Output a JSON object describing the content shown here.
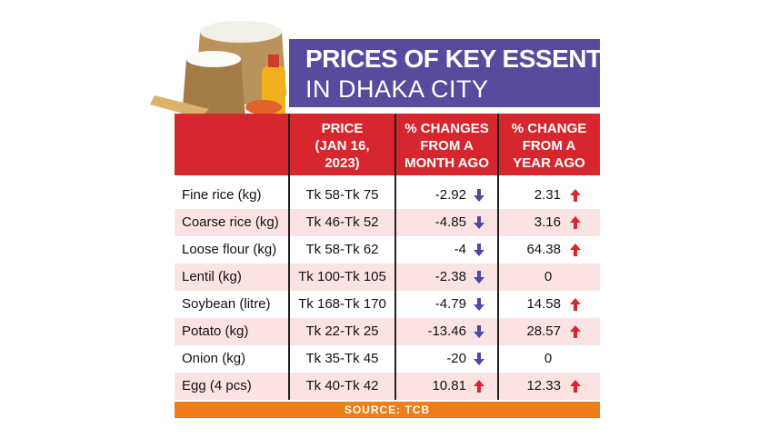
{
  "title": {
    "line1": "PRICES OF KEY ESSENTIALS",
    "line2": "IN DHAKA CITY"
  },
  "header": {
    "columns": [
      [
        "PRICE",
        "(JAN 16,",
        "2023)"
      ],
      [
        "% CHANGES",
        "FROM A",
        "MONTH AGO"
      ],
      [
        "% CHANGE",
        "FROM A",
        "YEAR AGO"
      ]
    ]
  },
  "table": {
    "rows": [
      [
        "Fine rice (kg)",
        "Tk 58-Tk 75",
        -2.92,
        2.31
      ],
      [
        "Coarse rice (kg)",
        "Tk 46-Tk 52",
        -4.85,
        3.16
      ],
      [
        "Loose flour (kg)",
        "Tk 58-Tk 62",
        -4,
        64.38
      ],
      [
        "Lentil (kg)",
        "Tk 100-Tk 105",
        -2.38,
        0
      ],
      [
        "Soybean (litre)",
        "Tk 168-Tk 170",
        -4.79,
        14.58
      ],
      [
        "Potato (kg)",
        "Tk 22-Tk 25",
        -13.46,
        28.57
      ],
      [
        "Onion (kg)",
        "Tk 35-Tk 45",
        -20,
        0
      ],
      [
        "Egg (4 pcs)",
        "Tk 40-Tk 42",
        10.81,
        12.33
      ]
    ]
  },
  "footer": {
    "source": "SOURCE: TCB"
  }
}
